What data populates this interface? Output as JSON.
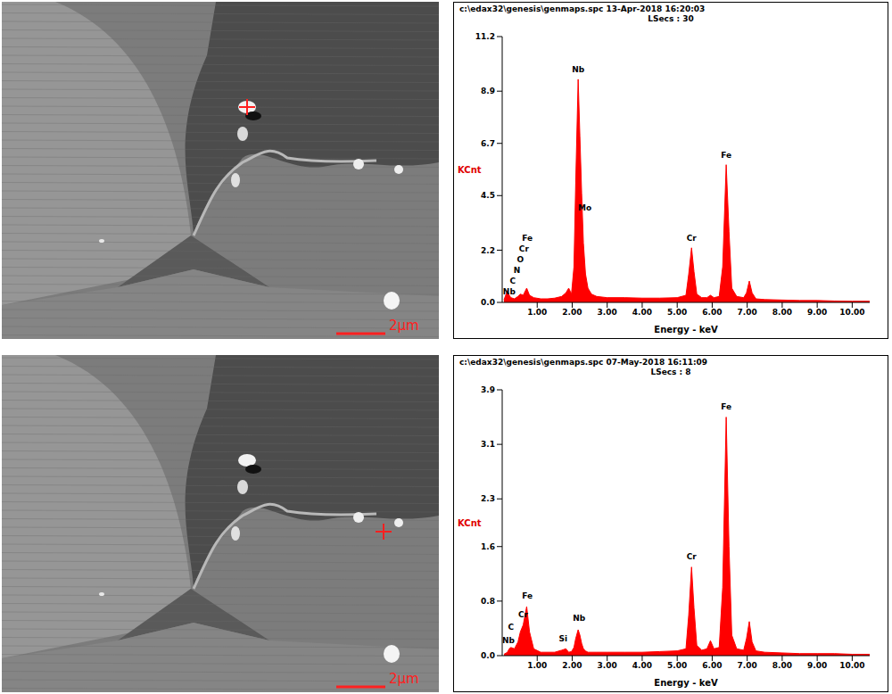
{
  "chart_data": [
    {
      "type": "area",
      "title": "c:\\edax32\\genesis\\genmaps.spc 13-Apr-2018 16:20:03",
      "subtitle": "LSecs : 30",
      "x_label": "Energy - keV",
      "y_label": "KCnt",
      "color": "#ff0000",
      "x": [
        0.05,
        0.15,
        0.2,
        0.25,
        0.35,
        0.45,
        0.52,
        0.6,
        0.7,
        0.78,
        0.9,
        1.1,
        1.3,
        1.5,
        1.7,
        1.82,
        1.9,
        1.98,
        2.05,
        2.1,
        2.17,
        2.22,
        2.27,
        2.32,
        2.38,
        2.45,
        2.55,
        2.7,
        3.0,
        3.5,
        4.0,
        4.5,
        5.0,
        5.25,
        5.33,
        5.41,
        5.48,
        5.56,
        5.7,
        5.85,
        5.95,
        6.05,
        6.2,
        6.3,
        6.4,
        6.48,
        6.56,
        6.7,
        6.9,
        6.98,
        7.06,
        7.14,
        7.25,
        7.5,
        8.0,
        8.5,
        9.0,
        9.5,
        10.0,
        10.5
      ],
      "values": [
        0.1,
        0.5,
        0.3,
        0.2,
        0.15,
        0.25,
        0.35,
        0.3,
        0.6,
        0.3,
        0.2,
        0.15,
        0.15,
        0.18,
        0.25,
        0.4,
        0.6,
        0.35,
        1.5,
        5.0,
        9.4,
        7.0,
        4.6,
        2.5,
        1.2,
        0.6,
        0.35,
        0.25,
        0.2,
        0.2,
        0.18,
        0.18,
        0.2,
        0.3,
        1.2,
        2.3,
        1.3,
        0.35,
        0.2,
        0.2,
        0.3,
        0.2,
        0.25,
        1.5,
        5.8,
        3.0,
        0.6,
        0.25,
        0.2,
        0.4,
        0.9,
        0.4,
        0.15,
        0.12,
        0.1,
        0.08,
        0.08,
        0.06,
        0.05,
        0.05
      ],
      "xlim": [
        0,
        10.5
      ],
      "xticks": [
        {
          "value": 1,
          "label": "1.00"
        },
        {
          "value": 2,
          "label": "2.00"
        },
        {
          "value": 3,
          "label": "3.00"
        },
        {
          "value": 4,
          "label": "4.00"
        },
        {
          "value": 5,
          "label": "5.00"
        },
        {
          "value": 6,
          "label": "6.00"
        },
        {
          "value": 7,
          "label": "7.00"
        },
        {
          "value": 8,
          "label": "8.00"
        },
        {
          "value": 9,
          "label": "9.00"
        },
        {
          "value": 10,
          "label": "10.00"
        }
      ],
      "ylim": [
        0,
        11.2
      ],
      "yticks": [
        {
          "value": 0,
          "label": "0.0"
        },
        2.2,
        4.5,
        6.7,
        8.9,
        11.2
      ],
      "annotations": [
        {
          "text": "Nb",
          "x": 2.17,
          "y": 9.8
        },
        {
          "text": "Mo",
          "x": 2.36,
          "y": 4.0
        },
        {
          "text": "Cr",
          "x": 5.41,
          "y": 2.7
        },
        {
          "text": "Fe",
          "x": 6.4,
          "y": 6.2
        },
        {
          "text": "Fe",
          "x": 0.72,
          "y": 2.7
        },
        {
          "text": "Cr",
          "x": 0.62,
          "y": 2.25
        },
        {
          "text": "O",
          "x": 0.52,
          "y": 1.8
        },
        {
          "text": "N",
          "x": 0.42,
          "y": 1.35
        },
        {
          "text": "C",
          "x": 0.3,
          "y": 0.9
        },
        {
          "text": "Nb",
          "x": 0.2,
          "y": 0.45
        }
      ]
    },
    {
      "type": "area",
      "title": "c:\\edax32\\genesis\\genmaps.spc 07-May-2018 16:11:09",
      "subtitle": "LSecs : 8",
      "x_label": "Energy - keV",
      "y_label": "KCnt",
      "color": "#ff0000",
      "x": [
        0.05,
        0.15,
        0.2,
        0.25,
        0.35,
        0.45,
        0.52,
        0.6,
        0.7,
        0.78,
        0.9,
        1.1,
        1.3,
        1.5,
        1.7,
        1.82,
        1.9,
        1.98,
        2.05,
        2.1,
        2.17,
        2.22,
        2.27,
        2.32,
        2.38,
        2.45,
        2.55,
        2.7,
        3.0,
        3.5,
        4.0,
        4.5,
        5.0,
        5.25,
        5.33,
        5.41,
        5.48,
        5.56,
        5.7,
        5.85,
        5.95,
        6.05,
        6.2,
        6.3,
        6.4,
        6.48,
        6.56,
        6.7,
        6.9,
        6.98,
        7.06,
        7.14,
        7.25,
        7.5,
        8.0,
        8.5,
        9.0,
        9.5,
        10.0,
        10.5
      ],
      "values": [
        0.02,
        0.05,
        0.1,
        0.12,
        0.1,
        0.2,
        0.35,
        0.45,
        0.72,
        0.35,
        0.1,
        0.05,
        0.05,
        0.05,
        0.08,
        0.1,
        0.05,
        0.06,
        0.12,
        0.25,
        0.38,
        0.3,
        0.18,
        0.1,
        0.07,
        0.05,
        0.05,
        0.05,
        0.05,
        0.05,
        0.05,
        0.06,
        0.07,
        0.1,
        0.6,
        1.3,
        0.7,
        0.15,
        0.08,
        0.1,
        0.22,
        0.1,
        0.12,
        1.0,
        3.5,
        1.6,
        0.3,
        0.1,
        0.08,
        0.25,
        0.5,
        0.2,
        0.07,
        0.05,
        0.04,
        0.03,
        0.03,
        0.03,
        0.02,
        0.02
      ],
      "xlim": [
        0,
        10.5
      ],
      "xticks": [
        {
          "value": 1,
          "label": "1.00"
        },
        {
          "value": 2,
          "label": "2.00"
        },
        {
          "value": 3,
          "label": "3.00"
        },
        {
          "value": 4,
          "label": "4.00"
        },
        {
          "value": 5,
          "label": "5.00"
        },
        {
          "value": 6,
          "label": "6.00"
        },
        {
          "value": 7,
          "label": "7.00"
        },
        {
          "value": 8,
          "label": "8.00"
        },
        {
          "value": 9,
          "label": "9.00"
        },
        {
          "value": 10,
          "label": "10.00"
        }
      ],
      "ylim": [
        0,
        3.9
      ],
      "yticks": [
        {
          "value": 0,
          "label": "0.0"
        },
        0.8,
        1.6,
        2.3,
        3.1,
        3.9
      ],
      "annotations": [
        {
          "text": "Fe",
          "x": 6.4,
          "y": 3.65
        },
        {
          "text": "Cr",
          "x": 5.41,
          "y": 1.45
        },
        {
          "text": "Nb",
          "x": 2.2,
          "y": 0.55
        },
        {
          "text": "Si",
          "x": 1.74,
          "y": 0.25
        },
        {
          "text": "Fe",
          "x": 0.72,
          "y": 0.88
        },
        {
          "text": "Cr",
          "x": 0.6,
          "y": 0.6
        },
        {
          "text": "C",
          "x": 0.25,
          "y": 0.42
        },
        {
          "text": "Nb",
          "x": 0.18,
          "y": 0.22
        }
      ]
    }
  ],
  "images": [
    {
      "scale_bar": "2μm"
    },
    {
      "scale_bar": "2μm"
    }
  ]
}
